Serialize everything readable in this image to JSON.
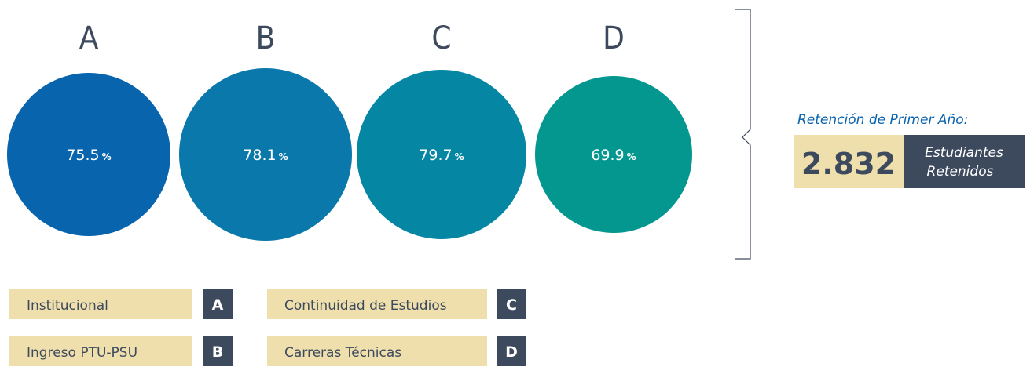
{
  "groups": [
    {
      "letter": "A",
      "value": "75.5",
      "unit": "%"
    },
    {
      "letter": "B",
      "value": "78.1",
      "unit": "%"
    },
    {
      "letter": "C",
      "value": "79.7",
      "unit": "%"
    },
    {
      "letter": "D",
      "value": "69.9",
      "unit": "%"
    }
  ],
  "summary": {
    "title": "Retención de Primer Año:",
    "number": "2.832",
    "label_line1": "Estudiantes",
    "label_line2": "Retenidos"
  },
  "legend": [
    {
      "name": "Institucional",
      "letter": "A"
    },
    {
      "name": "Ingreso PTU-PSU",
      "letter": "B"
    },
    {
      "name": "Continuidad de Estudios",
      "letter": "C"
    },
    {
      "name": "Carreras Técnicas",
      "letter": "D"
    }
  ]
}
